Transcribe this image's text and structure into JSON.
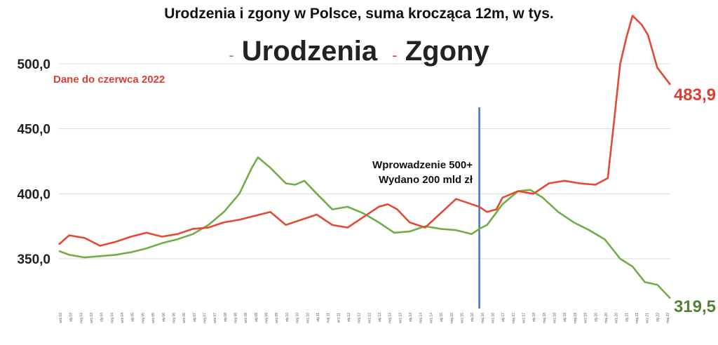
{
  "chart_data": {
    "type": "line",
    "title": "Urodzenia i zgony w Polsce, suma krocząca 12m, w tys.",
    "note": "Dane do czerwca 2022",
    "annotation": [
      "Wprowadzenie 500+",
      "Wydano 200 mld zł"
    ],
    "ylim": [
      310,
      540
    ],
    "yticks": [
      350,
      400,
      450,
      500
    ],
    "ytick_labels": [
      "350,0",
      "400,0",
      "450,0",
      "500,0"
    ],
    "grid": true,
    "x_tick_labels": [
      "wrz.02",
      "sty.03",
      "maj.03",
      "wrz.03",
      "sty.04",
      "maj.04",
      "wrz.04",
      "sty.05",
      "maj.05",
      "wrz.05",
      "sty.06",
      "maj.06",
      "wrz.06",
      "sty.07",
      "maj.07",
      "wrz.07",
      "sty.08",
      "maj.08",
      "wrz.08",
      "sty.09",
      "maj.09",
      "wrz.09",
      "sty.10",
      "maj.10",
      "wrz.10",
      "sty.11",
      "maj.11",
      "wrz.11",
      "sty.12",
      "maj.12",
      "wrz.12",
      "sty.13",
      "maj.13",
      "wrz.13",
      "sty.14",
      "maj.14",
      "wrz.14",
      "sty.15",
      "maj.15",
      "wrz.15",
      "sty.16",
      "maj.16",
      "wrz.16",
      "sty.17",
      "maj.17",
      "wrz.17",
      "sty.18",
      "maj.18",
      "wrz.18",
      "sty.19",
      "maj.19",
      "wrz.19",
      "sty.20",
      "maj.20",
      "wrz.20",
      "sty.21",
      "maj.21",
      "wrz.21",
      "sty.22",
      "maj.22"
    ],
    "x_range": [
      2002.67,
      2022.42
    ],
    "vline_x": 2016.25,
    "series": [
      {
        "name": "Urodzenia",
        "color": "#70ad47",
        "end_label": "319,5",
        "end_label_color": "#548235",
        "x": [
          2002.67,
          2003.0,
          2003.5,
          2004.0,
          2004.5,
          2005.0,
          2005.5,
          2006.0,
          2006.5,
          2007.0,
          2007.5,
          2008.0,
          2008.5,
          2008.9,
          2009.1,
          2009.5,
          2010.0,
          2010.3,
          2010.6,
          2011.0,
          2011.5,
          2012.0,
          2012.5,
          2013.0,
          2013.5,
          2014.0,
          2014.5,
          2015.0,
          2015.5,
          2016.0,
          2016.25,
          2016.5,
          2017.0,
          2017.5,
          2017.9,
          2018.3,
          2018.8,
          2019.3,
          2019.8,
          2020.3,
          2020.8,
          2021.2,
          2021.6,
          2022.0,
          2022.42
        ],
        "values": [
          356,
          353,
          351,
          352,
          353,
          355,
          358,
          362,
          365,
          369,
          376,
          386,
          400,
          420,
          428,
          420,
          408,
          407,
          410,
          400,
          388,
          390,
          385,
          378,
          370,
          371,
          375,
          373,
          372,
          369,
          373,
          376,
          392,
          402,
          403,
          397,
          386,
          378,
          372,
          365,
          350,
          344,
          332,
          330,
          319.5
        ]
      },
      {
        "name": "Zgony",
        "color": "#e34a33",
        "end_label": "483,9",
        "end_label_color": "#e03c31",
        "x": [
          2002.67,
          2003.0,
          2003.5,
          2004.0,
          2004.5,
          2005.0,
          2005.5,
          2006.0,
          2006.5,
          2007.0,
          2007.5,
          2008.0,
          2008.5,
          2009.0,
          2009.5,
          2010.0,
          2010.5,
          2011.0,
          2011.5,
          2012.0,
          2012.5,
          2013.0,
          2013.3,
          2013.6,
          2014.0,
          2014.5,
          2015.0,
          2015.5,
          2016.0,
          2016.25,
          2016.5,
          2016.8,
          2017.0,
          2017.5,
          2018.0,
          2018.5,
          2019.0,
          2019.5,
          2020.0,
          2020.4,
          2020.6,
          2020.8,
          2021.0,
          2021.2,
          2021.5,
          2021.7,
          2022.0,
          2022.42
        ],
        "values": [
          361,
          368,
          366,
          360,
          363,
          367,
          370,
          367,
          369,
          373,
          374,
          378,
          380,
          383,
          386,
          376,
          380,
          384,
          376,
          374,
          382,
          390,
          392,
          388,
          378,
          374,
          385,
          396,
          392,
          390,
          386,
          388,
          397,
          402,
          400,
          408,
          410,
          408,
          407,
          412,
          455,
          500,
          520,
          537,
          530,
          522,
          497,
          483.9
        ]
      }
    ]
  }
}
